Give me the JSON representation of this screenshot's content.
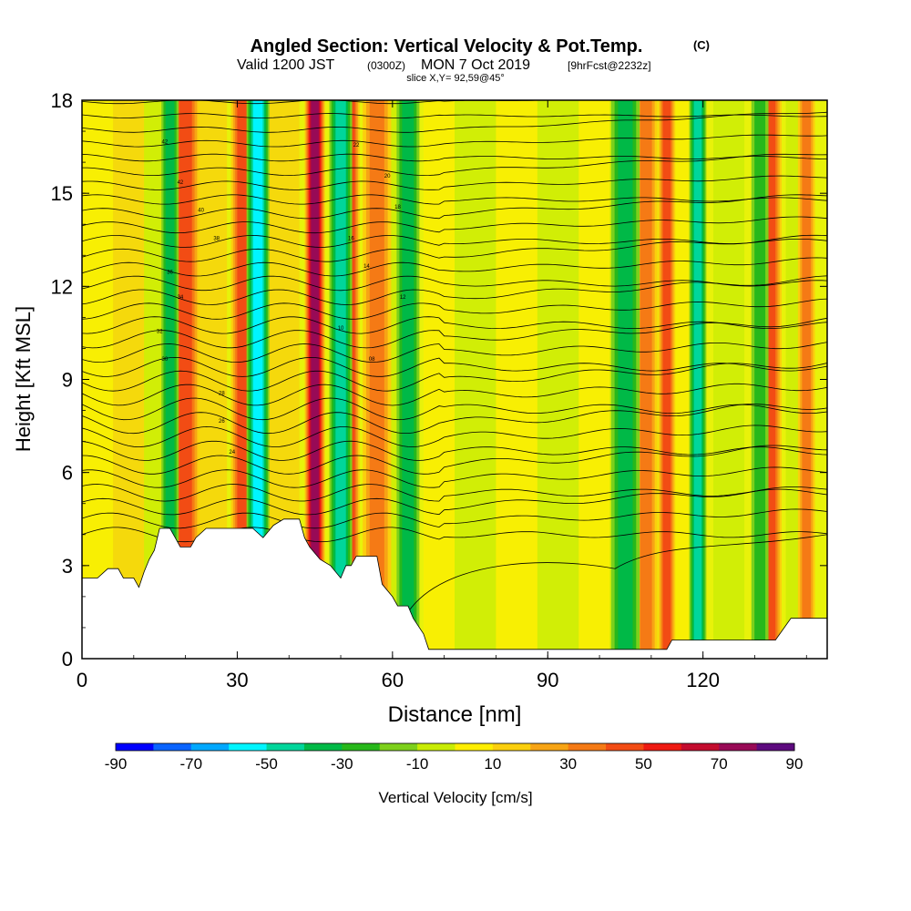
{
  "chart_data": {
    "type": "heatmap",
    "title": "Angled Section: Vertical Velocity & Pot.Temp.",
    "title_unit": "(C)",
    "subtitle": {
      "valid": "Valid 1200 JST",
      "utc": "(0300Z)",
      "date": "MON 7 Oct 2019",
      "fcst": "[9hrFcst@2232z]"
    },
    "slice_label": "slice X,Y= 92,59@45°",
    "xlabel": "Distance [nm]",
    "ylabel": "Height [Kft MSL]",
    "xlim": [
      0,
      144
    ],
    "ylim": [
      0,
      18
    ],
    "x_ticks": [
      "0",
      "30",
      "60",
      "90",
      "120"
    ],
    "y_ticks": [
      "0",
      "3",
      "6",
      "9",
      "12",
      "15",
      "18"
    ],
    "x_tick_values": [
      0,
      30,
      60,
      90,
      120
    ],
    "y_tick_values": [
      0,
      3,
      6,
      9,
      12,
      15,
      18
    ],
    "colorbar": {
      "label": "Vertical Velocity [cm/s]",
      "tick_labels": [
        "-90",
        "-70",
        "-50",
        "-30",
        "-10",
        "10",
        "30",
        "50",
        "70",
        "90"
      ],
      "colors": [
        "#0000ff",
        "#0a64ff",
        "#00a8ff",
        "#00f5ff",
        "#00d69b",
        "#00b947",
        "#27b81b",
        "#7dd01c",
        "#c8ec04",
        "#ffee00",
        "#fbcf0d",
        "#f7a415",
        "#f57a15",
        "#f24c14",
        "#ee1a12",
        "#c30c2e",
        "#980a56",
        "#5d0a7e"
      ]
    },
    "updrafts": [
      {
        "x": 20,
        "w": 2.5,
        "v": 35
      },
      {
        "x": 31,
        "w": 2.0,
        "v": 40
      },
      {
        "x": 45,
        "w": 1.8,
        "v": 70
      },
      {
        "x": 52,
        "w": 1.5,
        "v": 40
      },
      {
        "x": 57,
        "w": 2.5,
        "v": 25
      },
      {
        "x": 109,
        "w": 2.0,
        "v": 30
      },
      {
        "x": 113,
        "w": 1.5,
        "v": 35
      },
      {
        "x": 133,
        "w": 2.0,
        "v": 35
      },
      {
        "x": 140,
        "w": 1.5,
        "v": 25
      }
    ],
    "downdrafts": [
      {
        "x": 17,
        "w": 1.5,
        "v": -30
      },
      {
        "x": 34,
        "w": 2.0,
        "v": -45
      },
      {
        "x": 50,
        "w": 2.0,
        "v": -35
      },
      {
        "x": 63,
        "w": 2.0,
        "v": -25
      },
      {
        "x": 105,
        "w": 2.5,
        "v": -25
      },
      {
        "x": 119,
        "w": 1.5,
        "v": -35
      },
      {
        "x": 131,
        "w": 1.5,
        "v": -20
      }
    ],
    "terrain": [
      [
        0,
        2.6
      ],
      [
        3,
        2.6
      ],
      [
        5,
        2.9
      ],
      [
        7,
        2.9
      ],
      [
        8,
        2.6
      ],
      [
        10,
        2.6
      ],
      [
        11,
        2.3
      ],
      [
        12,
        2.8
      ],
      [
        13,
        3.2
      ],
      [
        14,
        3.5
      ],
      [
        15,
        4.2
      ],
      [
        17,
        4.2
      ],
      [
        18,
        3.9
      ],
      [
        19,
        3.6
      ],
      [
        21,
        3.6
      ],
      [
        22,
        3.9
      ],
      [
        24,
        4.2
      ],
      [
        33,
        4.2
      ],
      [
        35,
        3.9
      ],
      [
        37,
        4.3
      ],
      [
        39,
        4.5
      ],
      [
        42,
        4.5
      ],
      [
        43,
        3.9
      ],
      [
        44,
        3.6
      ],
      [
        46,
        3.2
      ],
      [
        48,
        3.0
      ],
      [
        50,
        2.6
      ],
      [
        51,
        3.0
      ],
      [
        52,
        3.0
      ],
      [
        53,
        3.3
      ],
      [
        57,
        3.3
      ],
      [
        58,
        2.4
      ],
      [
        60,
        2.0
      ],
      [
        61,
        1.7
      ],
      [
        63,
        1.7
      ],
      [
        64,
        1.3
      ],
      [
        66,
        0.8
      ],
      [
        67,
        0.3
      ],
      [
        83,
        0.3
      ],
      [
        96,
        0.3
      ],
      [
        113,
        0.3
      ],
      [
        114,
        0.6
      ],
      [
        128,
        0.6
      ],
      [
        134,
        0.6
      ],
      [
        137,
        1.3
      ],
      [
        144,
        1.3
      ]
    ],
    "theta_labels": [
      "42",
      "42",
      "40",
      "38",
      "36",
      "34",
      "32",
      "30",
      "28",
      "26",
      "24",
      "22",
      "20",
      "18",
      "16",
      "14",
      "12",
      "10",
      "08"
    ]
  }
}
